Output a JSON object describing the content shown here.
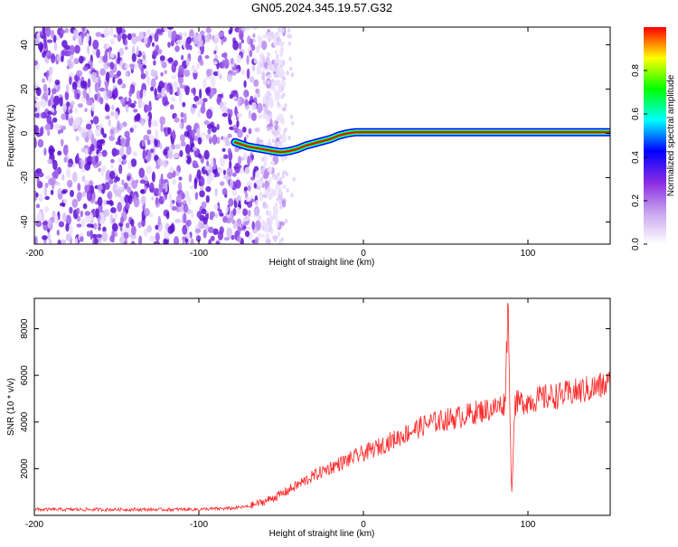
{
  "chart_data": [
    {
      "type": "heatmap",
      "title": "GN05.2024.345.19.57.G32",
      "xlabel": "Height of straight line (km)",
      "ylabel": "Frequency (Hz)",
      "xlim": [
        -200,
        150
      ],
      "ylim": [
        -50,
        48
      ],
      "x_ticks": [
        -200,
        -100,
        0,
        100
      ],
      "y_ticks": [
        -40,
        -20,
        0,
        20,
        40
      ],
      "colorbar": {
        "label": "Normalized spectral amplitude",
        "range": [
          0,
          1
        ],
        "ticks": [
          "0.0",
          "0.2",
          "0.4",
          "0.6",
          "0.8"
        ],
        "colormap": [
          "#ffffff",
          "#c9a6ef",
          "#8a2be2",
          "#0000ff",
          "#00ffff",
          "#00ff00",
          "#ffff00",
          "#ff0000"
        ]
      },
      "noise_region_x": [
        -200,
        -60
      ],
      "trace": {
        "x": [
          -78,
          -70,
          -62,
          -55,
          -50,
          -45,
          -40,
          -35,
          -30,
          -25,
          -20,
          -15,
          -10,
          -5,
          0,
          10,
          20,
          40,
          60,
          80,
          100,
          120,
          150
        ],
        "y": [
          -4,
          -6,
          -7,
          -8,
          -8.5,
          -8,
          -7,
          -5.5,
          -4.5,
          -3.5,
          -2.5,
          -1,
          0,
          0.5,
          0.5,
          0.5,
          0.5,
          0.5,
          0.5,
          0.5,
          0.5,
          0.5,
          0.5
        ]
      }
    },
    {
      "type": "line",
      "xlabel": "Height of straight line (km)",
      "ylabel": "SNR (10 * v/v)",
      "xlim": [
        -200,
        150
      ],
      "ylim": [
        0,
        9300
      ],
      "x_ticks": [
        -200,
        -100,
        0,
        100
      ],
      "y_ticks": [
        2000,
        4000,
        6000,
        8000
      ],
      "series": [
        {
          "color": "#ff2a2a",
          "x": [
            -200,
            -180,
            -160,
            -140,
            -120,
            -100,
            -80,
            -70,
            -60,
            -50,
            -40,
            -30,
            -20,
            -10,
            0,
            10,
            20,
            30,
            40,
            50,
            60,
            70,
            80,
            86,
            88,
            90,
            92,
            100,
            110,
            120,
            130,
            140,
            150
          ],
          "values": [
            250,
            250,
            250,
            250,
            250,
            260,
            300,
            380,
            600,
            900,
            1300,
            1700,
            2050,
            2350,
            2650,
            2950,
            3300,
            3650,
            3950,
            4100,
            4250,
            4450,
            4600,
            4800,
            9200,
            700,
            4800,
            4900,
            5050,
            5150,
            5300,
            5450,
            5650
          ]
        }
      ]
    }
  ]
}
